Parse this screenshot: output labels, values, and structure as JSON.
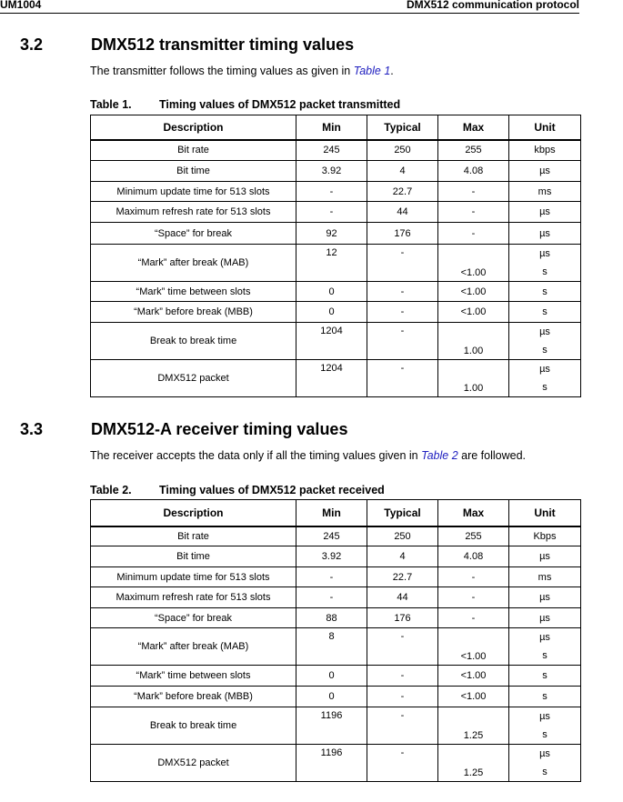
{
  "header": {
    "left": "UM1004",
    "right": "DMX512 communication protocol"
  },
  "sections": [
    {
      "number": "3.2",
      "title": "DMX512 transmitter timing values",
      "para_before": "The transmitter follows the timing values as given in ",
      "para_link": "Table 1",
      "para_after": ".",
      "table_label": "Table 1.",
      "table_title": "Timing values of DMX512 packet transmitted"
    },
    {
      "number": "3.3",
      "title": "DMX512-A receiver timing values",
      "para_before": "The receiver accepts the data only if all the timing values given in ",
      "para_link": "Table 2",
      "para_after": " are followed.",
      "table_label": "Table 2.",
      "table_title": "Timing values of DMX512 packet received"
    }
  ],
  "columns": [
    "Description",
    "Min",
    "Typical",
    "Max",
    "Unit"
  ],
  "tables": [
    [
      [
        "Bit rate",
        "245",
        "250",
        "255",
        [
          "kbps"
        ]
      ],
      [
        "Bit time",
        "3.92",
        "4",
        "4.08",
        [
          "µs"
        ]
      ],
      [
        "Minimum update time for 513 slots",
        "-",
        "22.7",
        "-",
        [
          "ms"
        ]
      ],
      [
        "Maximum refresh rate for 513 slots",
        "-",
        "44",
        "-",
        [
          "µs"
        ]
      ],
      [
        "“Space” for break",
        "92",
        "176",
        "-",
        [
          "µs"
        ]
      ],
      [
        "“Mark” after break (MAB)",
        "12",
        "-",
        "<1.00",
        [
          "µs",
          "s"
        ]
      ],
      [
        "“Mark” time between slots",
        "0",
        "-",
        "<1.00",
        [
          "s"
        ]
      ],
      [
        "“Mark” before break (MBB)",
        "0",
        "-",
        "<1.00",
        [
          "s"
        ]
      ],
      [
        "Break to break time",
        "1204",
        "-",
        "1.00",
        [
          "µs",
          "s"
        ]
      ],
      [
        "DMX512 packet",
        "1204",
        "-",
        "1.00",
        [
          "µs",
          "s"
        ]
      ]
    ],
    [
      [
        "Bit rate",
        "245",
        "250",
        "255",
        [
          "Kbps"
        ]
      ],
      [
        "Bit time",
        "3.92",
        "4",
        "4.08",
        [
          "µs"
        ]
      ],
      [
        "Minimum update time for 513 slots",
        "-",
        "22.7",
        "-",
        [
          "ms"
        ]
      ],
      [
        "Maximum refresh rate for 513 slots",
        "-",
        "44",
        "-",
        [
          "µs"
        ]
      ],
      [
        "“Space” for break",
        "88",
        "176",
        "-",
        [
          "µs"
        ]
      ],
      [
        "“Mark” after break (MAB)",
        "8",
        "-",
        "<1.00",
        [
          "µs",
          "s"
        ]
      ],
      [
        "“Mark” time between slots",
        "0",
        "-",
        "<1.00",
        [
          "s"
        ]
      ],
      [
        "“Mark” before break (MBB)",
        "0",
        "-",
        "<1.00",
        [
          "s"
        ]
      ],
      [
        "Break to break time",
        "1196",
        "-",
        "1.25",
        [
          "µs",
          "s"
        ]
      ],
      [
        "DMX512 packet",
        "1196",
        "-",
        "1.25",
        [
          "µs",
          "s"
        ]
      ]
    ]
  ]
}
